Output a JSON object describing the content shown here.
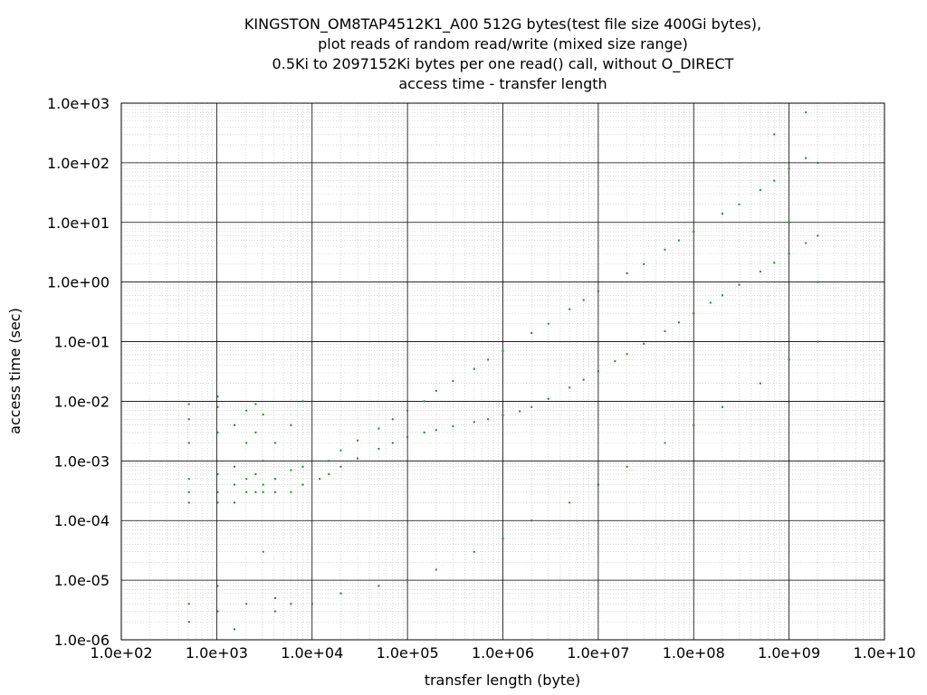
{
  "chart_data": {
    "type": "scatter",
    "title_lines": [
      "KINGSTON_OM8TAP4512K1_A00 512G bytes(test file size 400Gi bytes),",
      "plot reads of random read/write (mixed size range)",
      "0.5Ki to 2097152Ki bytes per one read() call, without O_DIRECT",
      "access time - transfer length"
    ],
    "xlabel": "transfer length (byte)",
    "ylabel": "access time (sec)",
    "x_scale": "log",
    "y_scale": "log",
    "xlim": [
      100,
      10000000000
    ],
    "ylim": [
      1e-06,
      1000
    ],
    "x_ticks": [
      100,
      1000,
      10000,
      100000,
      1000000,
      10000000,
      100000000,
      1000000000,
      10000000000
    ],
    "x_tick_labels": [
      "1.0e+02",
      "1.0e+03",
      "1.0e+04",
      "1.0e+05",
      "1.0e+06",
      "1.0e+07",
      "1.0e+08",
      "1.0e+09",
      "1.0e+10"
    ],
    "y_ticks": [
      1e-06,
      1e-05,
      0.0001,
      0.001,
      0.01,
      0.1,
      1,
      10,
      100,
      1000
    ],
    "y_tick_labels": [
      "1.0e-06",
      "1.0e-05",
      "1.0e-04",
      "1.0e-03",
      "1.0e-02",
      "1.0e-01",
      "1.0e+00",
      "1.0e+01",
      "1.0e+02",
      "1.0e+03"
    ],
    "grid": true,
    "point_color": "#00a000",
    "series": [
      {
        "points": [
          [
            512,
            0.0002
          ],
          [
            512,
            0.0003
          ],
          [
            512,
            0.0005
          ],
          [
            512,
            0.002
          ],
          [
            512,
            0.005
          ],
          [
            512,
            0.009
          ],
          [
            512,
            2e-06
          ],
          [
            512,
            4e-06
          ],
          [
            1024,
            0.0002
          ],
          [
            1024,
            0.0003
          ],
          [
            1024,
            0.0006
          ],
          [
            1024,
            0.003
          ],
          [
            1024,
            0.008
          ],
          [
            1024,
            0.012
          ],
          [
            1024,
            8e-06
          ],
          [
            1024,
            3e-06
          ],
          [
            1536,
            0.0002
          ],
          [
            1536,
            0.0004
          ],
          [
            1536,
            0.0008
          ],
          [
            1536,
            0.004
          ],
          [
            1536,
            1.5e-06
          ],
          [
            2048,
            0.0003
          ],
          [
            2048,
            0.0005
          ],
          [
            2048,
            0.002
          ],
          [
            2048,
            0.007
          ],
          [
            2048,
            4e-06
          ],
          [
            2560,
            0.0003
          ],
          [
            2560,
            0.0006
          ],
          [
            2560,
            0.003
          ],
          [
            2560,
            0.009
          ],
          [
            3072,
            0.0003
          ],
          [
            3072,
            0.0004
          ],
          [
            3072,
            0.001
          ],
          [
            3072,
            0.006
          ],
          [
            3072,
            3e-05
          ],
          [
            4096,
            0.0003
          ],
          [
            4096,
            0.0005
          ],
          [
            4096,
            0.002
          ],
          [
            4096,
            3e-06
          ],
          [
            4096,
            5e-06
          ],
          [
            6000,
            0.0003
          ],
          [
            6000,
            0.0007
          ],
          [
            6000,
            0.004
          ],
          [
            6000,
            4e-06
          ],
          [
            8000,
            0.0004
          ],
          [
            8000,
            0.0008
          ],
          [
            8000,
            0.01
          ],
          [
            12000,
            0.0005
          ],
          [
            15000,
            0.0006
          ],
          [
            20000,
            0.0008
          ],
          [
            30000,
            0.0011
          ],
          [
            50000,
            0.0016
          ],
          [
            70000,
            0.002
          ],
          [
            100000,
            0.0025
          ],
          [
            150000,
            0.003
          ],
          [
            200000,
            0.0033
          ],
          [
            300000,
            0.0038
          ],
          [
            500000,
            0.0045
          ],
          [
            700000,
            0.005
          ],
          [
            1000000,
            0.0058
          ],
          [
            1500000,
            0.0068
          ],
          [
            2000000,
            0.008
          ],
          [
            3000000,
            0.011
          ],
          [
            5000000,
            0.017
          ],
          [
            7000000,
            0.023
          ],
          [
            10000000,
            0.032
          ],
          [
            15000000,
            0.047
          ],
          [
            20000000,
            0.062
          ],
          [
            30000000,
            0.092
          ],
          [
            50000000,
            0.15
          ],
          [
            70000000,
            0.21
          ],
          [
            100000000,
            0.3
          ],
          [
            150000000,
            0.45
          ],
          [
            200000000,
            0.6
          ],
          [
            300000000,
            0.9
          ],
          [
            500000000,
            1.5
          ],
          [
            700000000,
            2.1
          ],
          [
            1000000000,
            3
          ],
          [
            1500000000,
            4.5
          ],
          [
            2000000000,
            6
          ],
          [
            15000,
            0.001
          ],
          [
            20000,
            0.0015
          ],
          [
            30000,
            0.0022
          ],
          [
            50000,
            0.0035
          ],
          [
            70000,
            0.005
          ],
          [
            100000,
            0.007
          ],
          [
            150000,
            0.01
          ],
          [
            200000,
            0.015
          ],
          [
            300000,
            0.022
          ],
          [
            500000,
            0.035
          ],
          [
            700000,
            0.05
          ],
          [
            1000000,
            0.07
          ],
          [
            2000000,
            0.14
          ],
          [
            3000000,
            0.2
          ],
          [
            5000000,
            0.35
          ],
          [
            7000000,
            0.5
          ],
          [
            10000000,
            0.7
          ],
          [
            20000000,
            1.4
          ],
          [
            30000000,
            2
          ],
          [
            50000000,
            3.5
          ],
          [
            70000000,
            5
          ],
          [
            100000000,
            7
          ],
          [
            200000000,
            14
          ],
          [
            300000000,
            20
          ],
          [
            500000000,
            35
          ],
          [
            700000000,
            50
          ],
          [
            1000000000,
            80
          ],
          [
            1500000000,
            120
          ],
          [
            2000000000,
            100
          ],
          [
            10000,
            4e-06
          ],
          [
            20000,
            6e-06
          ],
          [
            50000,
            8e-06
          ],
          [
            100000,
            1e-05
          ],
          [
            200000,
            1.5e-05
          ],
          [
            500000,
            3e-05
          ],
          [
            1000000,
            5e-05
          ],
          [
            2000000,
            0.0001
          ],
          [
            5000000,
            0.0002
          ],
          [
            10000000,
            0.0004
          ],
          [
            20000000,
            0.0008
          ],
          [
            50000000,
            0.002
          ],
          [
            100000000,
            0.004
          ],
          [
            200000000,
            0.008
          ],
          [
            500000000,
            0.02
          ],
          [
            1000000000,
            0.05
          ],
          [
            2000000000,
            0.1
          ],
          [
            1500000000,
            700
          ],
          [
            700000000,
            300
          ],
          [
            1000000000,
            10
          ],
          [
            2000000000,
            1
          ]
        ]
      }
    ]
  }
}
